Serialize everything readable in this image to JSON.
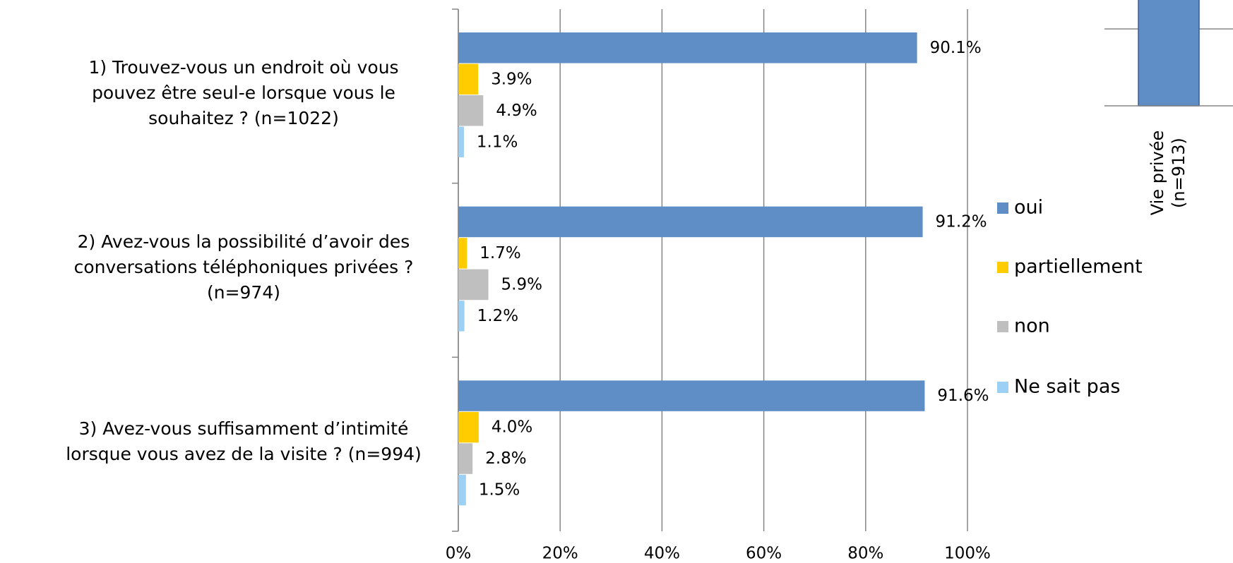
{
  "chart_data": {
    "type": "barh",
    "categories": [
      "1) Trouvez-vous un endroit où vous\npouvez être seul-e lorsque vous le\nsouhaitez ? (n=1022)",
      "2) Avez-vous la possibilité d’avoir des\nconversations téléphoniques privées ?\n(n=974)",
      "3) Avez-vous suffisamment d’intimité\nlorsque vous avez de la visite ? (n=994)"
    ],
    "series": [
      {
        "name": "oui",
        "color": "#5f8dc6",
        "values": [
          90.1,
          91.2,
          91.6
        ],
        "value_labels": [
          "90.1%",
          "91.2%",
          "91.6%"
        ]
      },
      {
        "name": "partiellement",
        "color": "#ffcc00",
        "values": [
          3.9,
          1.7,
          4.0
        ],
        "value_labels": [
          "3.9%",
          "1.7%",
          "4.0%"
        ]
      },
      {
        "name": "non",
        "color": "#bfbfbf",
        "values": [
          4.9,
          5.9,
          2.8
        ],
        "value_labels": [
          "4.9%",
          "5.9%",
          "2.8%"
        ]
      },
      {
        "name": "Ne sait pas",
        "color": "#9dd0f5",
        "values": [
          1.1,
          1.2,
          1.5
        ],
        "value_labels": [
          "1.1%",
          "1.2%",
          "1.5%"
        ]
      }
    ],
    "xlim": [
      0,
      100
    ],
    "xticks": [
      {
        "value": 0,
        "label": "0%"
      },
      {
        "value": 20,
        "label": "20%"
      },
      {
        "value": 40,
        "label": "40%"
      },
      {
        "value": 60,
        "label": "60%"
      },
      {
        "value": 80,
        "label": "80%"
      },
      {
        "value": 100,
        "label": "100%"
      }
    ],
    "grid": true,
    "legend": "right",
    "inset_label": [
      "Vie privée",
      "(n=913)"
    ],
    "inset_color": "#5f8dc6"
  }
}
